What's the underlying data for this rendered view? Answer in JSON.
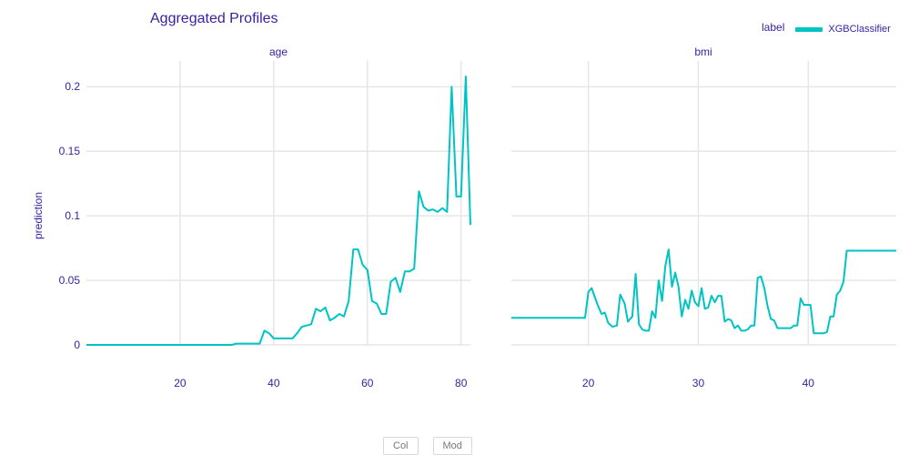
{
  "chart_data": {
    "type": "line",
    "title": "Aggregated Profiles",
    "ylabel": "prediction",
    "legend": {
      "title": "label",
      "entries": [
        "XGBClassifier"
      ],
      "position": "top-right"
    },
    "series_color": "#00c4c4",
    "text_color": "#371ea3",
    "grid_color": "#e6e6e6",
    "grid": true,
    "ylim": [
      0,
      0.22
    ],
    "yticks": [
      0,
      0.05,
      0.1,
      0.15,
      0.2
    ],
    "yticklabels": [
      "0",
      "0.05",
      "0.1",
      "0.15",
      "0.2"
    ],
    "panels": [
      {
        "title": "age",
        "xlim": [
          0,
          82
        ],
        "xticks": [
          20,
          40,
          60,
          80
        ],
        "series": [
          {
            "name": "XGBClassifier",
            "x": [
              0,
              10,
              20,
              25,
              31,
              32,
              33,
              35,
              37,
              38,
              39,
              40,
              41,
              42,
              43,
              44,
              45,
              46,
              47,
              48,
              49,
              50,
              51,
              52,
              53,
              54,
              55,
              56,
              57,
              58,
              59,
              60,
              61,
              62,
              63,
              64,
              65,
              66,
              67,
              68,
              69,
              70,
              71,
              72,
              73,
              74,
              75,
              76,
              77,
              78,
              79,
              80,
              81,
              82
            ],
            "y": [
              0,
              0,
              0,
              0,
              0,
              0.001,
              0.001,
              0.001,
              0.001,
              0.011,
              0.009,
              0.005,
              0.005,
              0.005,
              0.005,
              0.005,
              0.009,
              0.014,
              0.015,
              0.016,
              0.028,
              0.026,
              0.029,
              0.019,
              0.021,
              0.024,
              0.022,
              0.034,
              0.074,
              0.074,
              0.062,
              0.058,
              0.034,
              0.032,
              0.024,
              0.024,
              0.049,
              0.052,
              0.041,
              0.057,
              0.057,
              0.059,
              0.119,
              0.107,
              0.104,
              0.105,
              0.103,
              0.106,
              0.103,
              0.2,
              0.115,
              0.115,
              0.208,
              0.093
            ]
          }
        ]
      },
      {
        "title": "bmi",
        "xlim": [
          13,
          48
        ],
        "xticks": [
          20,
          30,
          40
        ],
        "series": [
          {
            "name": "XGBClassifier",
            "x": [
              13,
              15,
              17,
              19,
              19.7,
              20,
              20.3,
              20.8,
              21.2,
              21.5,
              21.8,
              22.2,
              22.6,
              22.9,
              23.3,
              23.6,
              24,
              24.3,
              24.6,
              24.9,
              25.2,
              25.5,
              25.8,
              26.1,
              26.4,
              26.7,
              27,
              27.3,
              27.6,
              27.9,
              28.2,
              28.5,
              28.8,
              29.1,
              29.4,
              29.7,
              30,
              30.3,
              30.6,
              30.9,
              31.2,
              31.5,
              31.8,
              32.1,
              32.4,
              32.7,
              33,
              33.3,
              33.6,
              33.9,
              34.2,
              34.5,
              34.8,
              35.1,
              35.4,
              35.7,
              36,
              36.3,
              36.6,
              36.9,
              37.2,
              37.5,
              37.8,
              38.1,
              38.4,
              38.7,
              39,
              39.3,
              39.6,
              39.9,
              40.2,
              40.5,
              40.8,
              41.1,
              41.4,
              41.7,
              42,
              42.3,
              42.6,
              42.9,
              43.2,
              43.5,
              43.8,
              44.1,
              44.4,
              44.7,
              45,
              45.3,
              45.6,
              45.9,
              46.2,
              46.5,
              47,
              48
            ],
            "y": [
              0.021,
              0.021,
              0.021,
              0.021,
              0.021,
              0.041,
              0.044,
              0.032,
              0.024,
              0.025,
              0.017,
              0.014,
              0.015,
              0.039,
              0.032,
              0.018,
              0.022,
              0.055,
              0.016,
              0.012,
              0.011,
              0.011,
              0.026,
              0.021,
              0.05,
              0.034,
              0.061,
              0.074,
              0.045,
              0.056,
              0.045,
              0.022,
              0.035,
              0.028,
              0.042,
              0.033,
              0.03,
              0.044,
              0.028,
              0.029,
              0.038,
              0.033,
              0.038,
              0.038,
              0.018,
              0.02,
              0.019,
              0.013,
              0.015,
              0.011,
              0.011,
              0.012,
              0.015,
              0.015,
              0.052,
              0.053,
              0.044,
              0.03,
              0.02,
              0.019,
              0.013,
              0.013,
              0.013,
              0.013,
              0.013,
              0.015,
              0.015,
              0.036,
              0.031,
              0.031,
              0.031,
              0.009,
              0.009,
              0.009,
              0.009,
              0.01,
              0.022,
              0.022,
              0.039,
              0.042,
              0.049,
              0.073,
              0.073,
              0.073,
              0.073,
              0.073,
              0.073,
              0.073,
              0.073,
              0.073,
              0.073,
              0.073,
              0.073,
              0.073
            ]
          }
        ]
      }
    ]
  },
  "footer": {
    "buttons": [
      "Col",
      "Mod"
    ]
  }
}
